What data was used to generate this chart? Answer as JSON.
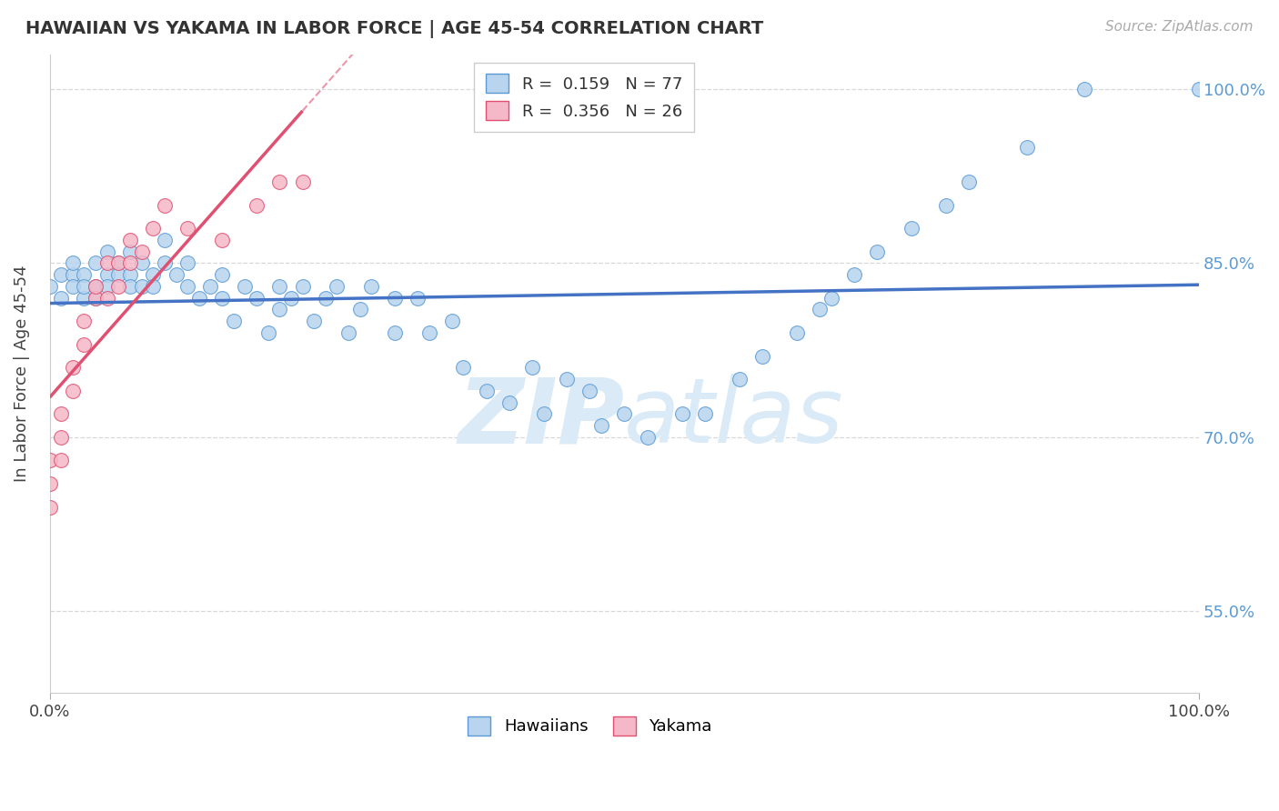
{
  "title": "HAWAIIAN VS YAKAMA IN LABOR FORCE | AGE 45-54 CORRELATION CHART",
  "source_text": "Source: ZipAtlas.com",
  "ylabel": "In Labor Force | Age 45-54",
  "xlim": [
    0.0,
    1.0
  ],
  "ylim": [
    0.48,
    1.03
  ],
  "yticks": [
    0.55,
    0.7,
    0.85,
    1.0
  ],
  "ytick_labels": [
    "55.0%",
    "70.0%",
    "85.0%",
    "100.0%"
  ],
  "hawaiian_R": 0.159,
  "hawaiian_N": 77,
  "yakama_R": 0.356,
  "yakama_N": 26,
  "hawaiian_fill": "#b8d4ee",
  "yakama_fill": "#f5b8c8",
  "hawaiian_edge": "#5b9bd5",
  "yakama_edge": "#e05070",
  "hawaiian_line": "#4472c4",
  "yakama_line": "#e05070",
  "watermark_color": "#daeaf7",
  "background_color": "#ffffff",
  "grid_color": "#d8d8d8",
  "hawaiians_x": [
    0.0,
    0.01,
    0.01,
    0.02,
    0.02,
    0.02,
    0.03,
    0.03,
    0.03,
    0.04,
    0.04,
    0.04,
    0.05,
    0.05,
    0.05,
    0.06,
    0.06,
    0.07,
    0.07,
    0.07,
    0.08,
    0.08,
    0.09,
    0.09,
    0.1,
    0.1,
    0.11,
    0.12,
    0.12,
    0.13,
    0.14,
    0.15,
    0.15,
    0.16,
    0.17,
    0.18,
    0.19,
    0.2,
    0.2,
    0.21,
    0.22,
    0.23,
    0.24,
    0.25,
    0.26,
    0.27,
    0.28,
    0.3,
    0.3,
    0.32,
    0.33,
    0.35,
    0.36,
    0.38,
    0.4,
    0.42,
    0.43,
    0.45,
    0.47,
    0.48,
    0.5,
    0.52,
    0.55,
    0.57,
    0.6,
    0.62,
    0.65,
    0.67,
    0.68,
    0.7,
    0.72,
    0.75,
    0.78,
    0.8,
    0.85,
    0.9,
    1.0
  ],
  "hawaiians_y": [
    0.83,
    0.84,
    0.82,
    0.84,
    0.83,
    0.85,
    0.82,
    0.84,
    0.83,
    0.83,
    0.85,
    0.82,
    0.84,
    0.86,
    0.83,
    0.85,
    0.84,
    0.86,
    0.84,
    0.83,
    0.85,
    0.83,
    0.84,
    0.83,
    0.87,
    0.85,
    0.84,
    0.83,
    0.85,
    0.82,
    0.83,
    0.84,
    0.82,
    0.8,
    0.83,
    0.82,
    0.79,
    0.83,
    0.81,
    0.82,
    0.83,
    0.8,
    0.82,
    0.83,
    0.79,
    0.81,
    0.83,
    0.82,
    0.79,
    0.82,
    0.79,
    0.8,
    0.76,
    0.74,
    0.73,
    0.76,
    0.72,
    0.75,
    0.74,
    0.71,
    0.72,
    0.7,
    0.72,
    0.72,
    0.75,
    0.77,
    0.79,
    0.81,
    0.82,
    0.84,
    0.86,
    0.88,
    0.9,
    0.92,
    0.95,
    1.0,
    1.0
  ],
  "yakama_x": [
    0.0,
    0.0,
    0.0,
    0.01,
    0.01,
    0.01,
    0.02,
    0.02,
    0.03,
    0.03,
    0.04,
    0.04,
    0.05,
    0.05,
    0.06,
    0.06,
    0.07,
    0.07,
    0.08,
    0.09,
    0.1,
    0.12,
    0.15,
    0.18,
    0.2,
    0.22
  ],
  "yakama_y": [
    0.64,
    0.66,
    0.68,
    0.68,
    0.7,
    0.72,
    0.74,
    0.76,
    0.78,
    0.8,
    0.82,
    0.83,
    0.82,
    0.85,
    0.83,
    0.85,
    0.85,
    0.87,
    0.86,
    0.88,
    0.9,
    0.88,
    0.87,
    0.9,
    0.92,
    0.92
  ]
}
